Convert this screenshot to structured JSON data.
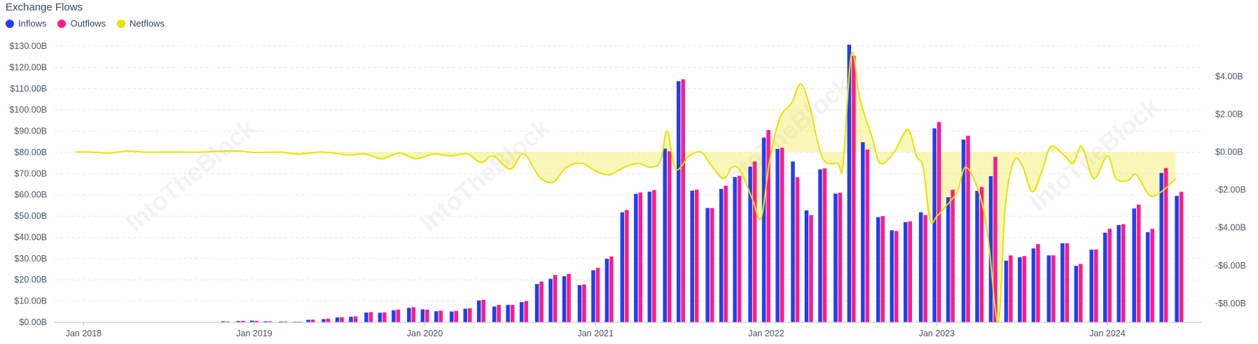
{
  "chart_data": {
    "type": "bar",
    "title": "Exchange Flows",
    "legend_position": "top-left",
    "grid": true,
    "watermark": "IntoTheBlock",
    "x_tick_labels": [
      "Jan 2018",
      "Jan 2019",
      "Jan 2020",
      "Jan 2021",
      "Jan 2022",
      "Jan 2023",
      "Jan 2024"
    ],
    "x_tick_years": [
      2018,
      2019,
      2020,
      2021,
      2022,
      2023,
      2024
    ],
    "x_range": [
      2017.83,
      2024.55
    ],
    "left_axis": {
      "ylim": [
        0,
        130
      ],
      "tick_values": [
        0,
        10,
        20,
        30,
        40,
        50,
        60,
        70,
        80,
        90,
        100,
        110,
        120,
        130
      ],
      "tick_labels": [
        "$0.00B",
        "$10.00B",
        "$20.00B",
        "$30.00B",
        "$40.00B",
        "$50.00B",
        "$60.00B",
        "$70.00B",
        "$80.00B",
        "$90.00B",
        "$100.00B",
        "$110.00B",
        "$120.00B",
        "$130.00B"
      ]
    },
    "right_axis": {
      "ylim": [
        -9.0,
        5.6
      ],
      "tick_values": [
        4,
        2,
        0,
        -2,
        -4,
        -6,
        -8
      ],
      "tick_labels": [
        "$4.00B",
        "$2.00B",
        "$0.00B",
        "-$2.00B",
        "-$4.00B",
        "-$6.00B",
        "-$8.00B"
      ]
    },
    "series": [
      {
        "name": "Inflows",
        "type": "bar",
        "axis": "left",
        "color": "#1f3ff2",
        "points": [
          [
            2018.0,
            0
          ],
          [
            2018.08,
            0
          ],
          [
            2018.17,
            0
          ],
          [
            2018.25,
            0
          ],
          [
            2018.33,
            0
          ],
          [
            2018.42,
            0
          ],
          [
            2018.5,
            0
          ],
          [
            2018.58,
            0
          ],
          [
            2018.67,
            0
          ],
          [
            2018.75,
            0
          ],
          [
            2018.83,
            0.5
          ],
          [
            2018.92,
            0.6
          ],
          [
            2019.0,
            0.8
          ],
          [
            2019.08,
            0.5
          ],
          [
            2019.17,
            0.4
          ],
          [
            2019.25,
            0.3
          ],
          [
            2019.33,
            1.2
          ],
          [
            2019.42,
            1.5
          ],
          [
            2019.5,
            2.3
          ],
          [
            2019.58,
            2.6
          ],
          [
            2019.67,
            4.6
          ],
          [
            2019.75,
            4.5
          ],
          [
            2019.83,
            5.7
          ],
          [
            2019.92,
            6.8
          ],
          [
            2020.0,
            6.1
          ],
          [
            2020.08,
            5.2
          ],
          [
            2020.17,
            5.1
          ],
          [
            2020.25,
            6.4
          ],
          [
            2020.33,
            10.3
          ],
          [
            2020.42,
            7.4
          ],
          [
            2020.5,
            8.2
          ],
          [
            2020.58,
            9.5
          ],
          [
            2020.67,
            18.0
          ],
          [
            2020.75,
            20.5
          ],
          [
            2020.83,
            21.7
          ],
          [
            2020.92,
            17.5
          ],
          [
            2021.0,
            24.5
          ],
          [
            2021.08,
            29.9
          ],
          [
            2021.17,
            51.8
          ],
          [
            2021.25,
            60.5
          ],
          [
            2021.33,
            61.5
          ],
          [
            2021.42,
            81.8
          ],
          [
            2021.5,
            113.5
          ],
          [
            2021.58,
            62.0
          ],
          [
            2021.67,
            53.8
          ],
          [
            2021.75,
            62.8
          ],
          [
            2021.83,
            68.4
          ],
          [
            2021.92,
            73.3
          ],
          [
            2022.0,
            87.0
          ],
          [
            2022.08,
            81.6
          ],
          [
            2022.17,
            75.7
          ],
          [
            2022.25,
            52.7
          ],
          [
            2022.33,
            72.0
          ],
          [
            2022.42,
            60.6
          ],
          [
            2022.5,
            130.7
          ],
          [
            2022.58,
            84.8
          ],
          [
            2022.67,
            49.5
          ],
          [
            2022.75,
            43.3
          ],
          [
            2022.83,
            47.2
          ],
          [
            2022.92,
            51.8
          ],
          [
            2023.0,
            91.3
          ],
          [
            2023.08,
            58.9
          ],
          [
            2023.17,
            86.0
          ],
          [
            2023.25,
            61.9
          ],
          [
            2023.33,
            68.8
          ],
          [
            2023.42,
            29.0
          ],
          [
            2023.5,
            30.6
          ],
          [
            2023.58,
            34.8
          ],
          [
            2023.67,
            31.5
          ],
          [
            2023.75,
            37.2
          ],
          [
            2023.83,
            26.6
          ],
          [
            2023.92,
            34.2
          ],
          [
            2024.0,
            42.2
          ],
          [
            2024.08,
            45.8
          ],
          [
            2024.17,
            53.6
          ],
          [
            2024.25,
            42.4
          ],
          [
            2024.33,
            70.3
          ],
          [
            2024.42,
            59.5
          ]
        ]
      },
      {
        "name": "Outflows",
        "type": "bar",
        "axis": "left",
        "color": "#ff1a8c",
        "points": [
          [
            2018.0,
            0
          ],
          [
            2018.08,
            0
          ],
          [
            2018.17,
            0
          ],
          [
            2018.25,
            0
          ],
          [
            2018.33,
            0
          ],
          [
            2018.42,
            0
          ],
          [
            2018.5,
            0
          ],
          [
            2018.58,
            0
          ],
          [
            2018.67,
            0
          ],
          [
            2018.75,
            0
          ],
          [
            2018.83,
            0.4
          ],
          [
            2018.92,
            0.7
          ],
          [
            2019.0,
            0.7
          ],
          [
            2019.08,
            0.5
          ],
          [
            2019.17,
            0.4
          ],
          [
            2019.25,
            0.3
          ],
          [
            2019.33,
            1.3
          ],
          [
            2019.42,
            1.7
          ],
          [
            2019.5,
            2.4
          ],
          [
            2019.58,
            2.8
          ],
          [
            2019.67,
            4.8
          ],
          [
            2019.75,
            4.7
          ],
          [
            2019.83,
            6.0
          ],
          [
            2019.92,
            7.1
          ],
          [
            2020.0,
            6.0
          ],
          [
            2020.08,
            5.5
          ],
          [
            2020.17,
            5.4
          ],
          [
            2020.25,
            6.6
          ],
          [
            2020.33,
            10.6
          ],
          [
            2020.42,
            8.2
          ],
          [
            2020.5,
            8.2
          ],
          [
            2020.58,
            10.0
          ],
          [
            2020.67,
            19.2
          ],
          [
            2020.75,
            22.3
          ],
          [
            2020.83,
            22.8
          ],
          [
            2020.92,
            17.8
          ],
          [
            2021.0,
            25.6
          ],
          [
            2021.08,
            31.0
          ],
          [
            2021.17,
            52.9
          ],
          [
            2021.25,
            61.1
          ],
          [
            2021.33,
            62.2
          ],
          [
            2021.42,
            80.5
          ],
          [
            2021.5,
            114.4
          ],
          [
            2021.58,
            62.4
          ],
          [
            2021.67,
            53.8
          ],
          [
            2021.75,
            64.3
          ],
          [
            2021.83,
            69.0
          ],
          [
            2021.92,
            75.7
          ],
          [
            2022.0,
            90.5
          ],
          [
            2022.08,
            82.2
          ],
          [
            2022.17,
            68.3
          ],
          [
            2022.25,
            50.5
          ],
          [
            2022.33,
            72.5
          ],
          [
            2022.42,
            61.0
          ],
          [
            2022.5,
            125.5
          ],
          [
            2022.58,
            81.3
          ],
          [
            2022.67,
            50.0
          ],
          [
            2022.75,
            43.0
          ],
          [
            2022.83,
            47.5
          ],
          [
            2022.92,
            50.5
          ],
          [
            2023.0,
            94.3
          ],
          [
            2023.08,
            62.4
          ],
          [
            2023.17,
            87.8
          ],
          [
            2023.25,
            63.7
          ],
          [
            2023.33,
            77.9
          ],
          [
            2023.42,
            31.5
          ],
          [
            2023.5,
            31.2
          ],
          [
            2023.58,
            36.8
          ],
          [
            2023.67,
            31.5
          ],
          [
            2023.75,
            37.2
          ],
          [
            2023.83,
            27.5
          ],
          [
            2023.92,
            34.3
          ],
          [
            2024.0,
            44.0
          ],
          [
            2024.08,
            46.2
          ],
          [
            2024.17,
            55.4
          ],
          [
            2024.25,
            44.0
          ],
          [
            2024.33,
            72.6
          ],
          [
            2024.42,
            61.4
          ]
        ]
      },
      {
        "name": "Netflows",
        "type": "area",
        "axis": "right",
        "color": "#e8e200",
        "points": [
          [
            2017.95,
            0.0
          ],
          [
            2018.05,
            0.0
          ],
          [
            2018.15,
            -0.05
          ],
          [
            2018.25,
            0.05
          ],
          [
            2018.35,
            0.0
          ],
          [
            2018.5,
            0.0
          ],
          [
            2018.7,
            0.0
          ],
          [
            2018.8,
            0.05
          ],
          [
            2018.92,
            0.05
          ],
          [
            2019.0,
            -0.02
          ],
          [
            2019.15,
            0.0
          ],
          [
            2019.25,
            -0.1
          ],
          [
            2019.4,
            0.0
          ],
          [
            2019.55,
            -0.15
          ],
          [
            2019.65,
            -0.1
          ],
          [
            2019.75,
            -0.35
          ],
          [
            2019.85,
            -0.05
          ],
          [
            2019.95,
            -0.35
          ],
          [
            2020.05,
            -0.1
          ],
          [
            2020.15,
            -0.2
          ],
          [
            2020.25,
            -0.1
          ],
          [
            2020.33,
            -0.55
          ],
          [
            2020.4,
            -0.2
          ],
          [
            2020.5,
            -0.9
          ],
          [
            2020.58,
            -0.1
          ],
          [
            2020.67,
            -1.3
          ],
          [
            2020.75,
            -1.6
          ],
          [
            2020.83,
            -0.8
          ],
          [
            2020.92,
            -0.6
          ],
          [
            2021.0,
            -1.0
          ],
          [
            2021.08,
            -1.2
          ],
          [
            2021.17,
            -0.8
          ],
          [
            2021.25,
            -0.6
          ],
          [
            2021.32,
            -0.8
          ],
          [
            2021.38,
            -0.5
          ],
          [
            2021.42,
            1.1
          ],
          [
            2021.47,
            -0.9
          ],
          [
            2021.55,
            -0.2
          ],
          [
            2021.62,
            0.0
          ],
          [
            2021.67,
            -0.6
          ],
          [
            2021.75,
            -1.4
          ],
          [
            2021.8,
            -0.8
          ],
          [
            2021.85,
            -1.0
          ],
          [
            2021.92,
            -2.5
          ],
          [
            2021.97,
            -3.5
          ],
          [
            2022.02,
            -0.5
          ],
          [
            2022.08,
            1.8
          ],
          [
            2022.15,
            2.6
          ],
          [
            2022.2,
            3.6
          ],
          [
            2022.25,
            2.6
          ],
          [
            2022.33,
            -0.3
          ],
          [
            2022.42,
            -0.6
          ],
          [
            2022.45,
            -0.7
          ],
          [
            2022.5,
            5.2
          ],
          [
            2022.55,
            2.8
          ],
          [
            2022.62,
            0.8
          ],
          [
            2022.67,
            -0.6
          ],
          [
            2022.75,
            0.0
          ],
          [
            2022.83,
            1.2
          ],
          [
            2022.88,
            -0.2
          ],
          [
            2022.92,
            -0.8
          ],
          [
            2022.96,
            -3.6
          ],
          [
            2023.0,
            -3.4
          ],
          [
            2023.05,
            -2.9
          ],
          [
            2023.12,
            -2.1
          ],
          [
            2023.17,
            -0.8
          ],
          [
            2023.25,
            -2.2
          ],
          [
            2023.3,
            -4.5
          ],
          [
            2023.36,
            -9.0
          ],
          [
            2023.4,
            -3.0
          ],
          [
            2023.45,
            -0.5
          ],
          [
            2023.5,
            -0.7
          ],
          [
            2023.56,
            -2.1
          ],
          [
            2023.62,
            -0.9
          ],
          [
            2023.67,
            0.3
          ],
          [
            2023.75,
            -0.2
          ],
          [
            2023.8,
            -0.6
          ],
          [
            2023.85,
            0.3
          ],
          [
            2023.92,
            -1.4
          ],
          [
            2024.0,
            -0.2
          ],
          [
            2024.05,
            -1.4
          ],
          [
            2024.12,
            -1.5
          ],
          [
            2024.17,
            -1.2
          ],
          [
            2024.25,
            -2.3
          ],
          [
            2024.33,
            -2.0
          ],
          [
            2024.4,
            -1.4
          ]
        ]
      }
    ]
  }
}
